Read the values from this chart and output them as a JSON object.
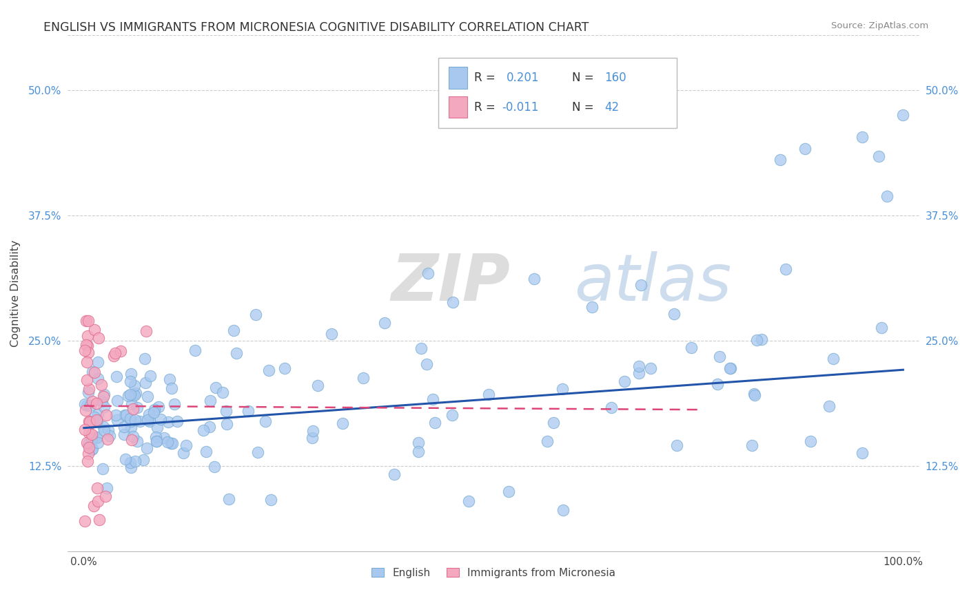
{
  "title": "ENGLISH VS IMMIGRANTS FROM MICRONESIA COGNITIVE DISABILITY CORRELATION CHART",
  "source": "Source: ZipAtlas.com",
  "ylabel": "Cognitive Disability",
  "english_color": "#a8c8f0",
  "english_edge_color": "#7aadd4",
  "immigrant_color": "#f4a8c0",
  "immigrant_edge_color": "#e07090",
  "english_line_color": "#2255aa",
  "immigrant_line_color": "#dd4477",
  "background_color": "#ffffff",
  "grid_color": "#cccccc",
  "ytick_vals": [
    0.125,
    0.25,
    0.375,
    0.5
  ],
  "ytick_labels": [
    "12.5%",
    "25.0%",
    "37.5%",
    "50.0%"
  ],
  "xlim": [
    -0.02,
    1.02
  ],
  "ylim": [
    0.04,
    0.555
  ],
  "watermark_zip": "ZIP",
  "watermark_atlas": "atlas",
  "legend_r1": "R = ",
  "legend_v1": "0.201",
  "legend_n1_label": "N = ",
  "legend_n1": "160",
  "legend_r2": "R = ",
  "legend_v2": "-0.011",
  "legend_n2_label": "N = ",
  "legend_n2": "42"
}
